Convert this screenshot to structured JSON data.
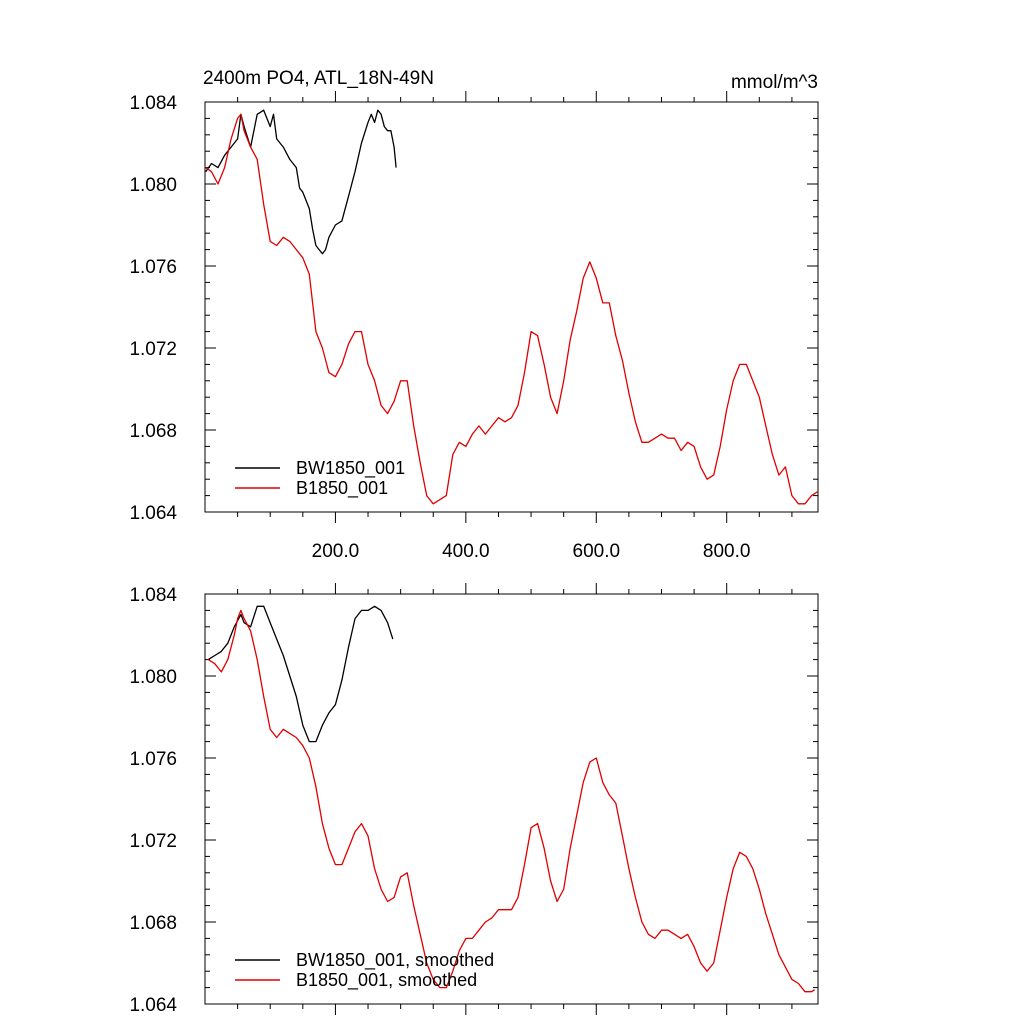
{
  "colors": {
    "black": "#000000",
    "red": "#e00000"
  },
  "chart_data": [
    {
      "type": "line",
      "title": "2400m PO4, ATL_18N-49N",
      "units": "mmol/m^3",
      "xlabel": "",
      "ylabel": "",
      "xlim": [
        0,
        940
      ],
      "ylim": [
        1.064,
        1.084
      ],
      "x_ticks": [
        200,
        400,
        600,
        800
      ],
      "x_tick_labels": [
        "200.0",
        "400.0",
        "600.0",
        "800.0"
      ],
      "y_ticks": [
        1.064,
        1.068,
        1.072,
        1.076,
        1.08,
        1.084
      ],
      "y_tick_labels": [
        "1.064",
        "1.068",
        "1.072",
        "1.076",
        "1.080",
        "1.084"
      ],
      "legend_position": "bottom-left",
      "grid": false,
      "series": [
        {
          "name": "BW1850_001",
          "color": "#000000",
          "x": [
            1,
            10,
            20,
            30,
            40,
            50,
            55,
            60,
            70,
            80,
            90,
            100,
            105,
            110,
            120,
            130,
            140,
            145,
            150,
            160,
            165,
            170,
            175,
            180,
            185,
            190,
            200,
            210,
            220,
            230,
            240,
            250,
            255,
            260,
            265,
            270,
            275,
            280,
            285,
            290,
            293
          ],
          "y": [
            1.0806,
            1.081,
            1.0808,
            1.0814,
            1.0818,
            1.0822,
            1.0834,
            1.0828,
            1.0818,
            1.0834,
            1.0836,
            1.0828,
            1.0834,
            1.0822,
            1.0818,
            1.0812,
            1.0808,
            1.0798,
            1.0796,
            1.0788,
            1.0778,
            1.077,
            1.0768,
            1.0766,
            1.0768,
            1.0774,
            1.078,
            1.0782,
            1.0794,
            1.0806,
            1.082,
            1.083,
            1.0834,
            1.083,
            1.0836,
            1.0834,
            1.0828,
            1.0826,
            1.0826,
            1.0818,
            1.0808
          ]
        },
        {
          "name": "B1850_001",
          "color": "#e00000",
          "x": [
            1,
            10,
            20,
            30,
            40,
            50,
            55,
            60,
            70,
            80,
            90,
            100,
            110,
            120,
            130,
            140,
            150,
            160,
            170,
            180,
            190,
            200,
            210,
            220,
            230,
            240,
            250,
            260,
            270,
            280,
            290,
            300,
            310,
            320,
            330,
            340,
            350,
            360,
            370,
            380,
            390,
            400,
            410,
            420,
            430,
            440,
            450,
            460,
            470,
            480,
            490,
            500,
            510,
            520,
            530,
            540,
            550,
            560,
            570,
            580,
            590,
            600,
            610,
            620,
            630,
            640,
            650,
            660,
            670,
            680,
            690,
            700,
            710,
            720,
            730,
            740,
            750,
            760,
            770,
            780,
            790,
            800,
            810,
            820,
            830,
            840,
            850,
            860,
            870,
            880,
            890,
            900,
            910,
            920,
            930,
            940
          ],
          "y": [
            1.0808,
            1.0806,
            1.08,
            1.0808,
            1.0822,
            1.0832,
            1.0834,
            1.0826,
            1.0818,
            1.0812,
            1.079,
            1.0772,
            1.077,
            1.0774,
            1.0772,
            1.0768,
            1.0764,
            1.0756,
            1.0728,
            1.072,
            1.0708,
            1.0706,
            1.0712,
            1.0722,
            1.0728,
            1.0728,
            1.0712,
            1.0704,
            1.0692,
            1.0688,
            1.0694,
            1.0704,
            1.0704,
            1.0682,
            1.0664,
            1.0648,
            1.0644,
            1.0646,
            1.0648,
            1.0668,
            1.0674,
            1.0672,
            1.0678,
            1.0682,
            1.0678,
            1.0682,
            1.0686,
            1.0684,
            1.0686,
            1.0692,
            1.0708,
            1.0728,
            1.0726,
            1.0712,
            1.0696,
            1.0688,
            1.0704,
            1.0724,
            1.0738,
            1.0754,
            1.0762,
            1.0754,
            1.0742,
            1.0742,
            1.0726,
            1.0714,
            1.0698,
            1.0684,
            1.0674,
            1.0674,
            1.0676,
            1.0678,
            1.0676,
            1.0676,
            1.067,
            1.0674,
            1.0672,
            1.0662,
            1.0656,
            1.0658,
            1.0672,
            1.069,
            1.0704,
            1.0712,
            1.0712,
            1.0704,
            1.0696,
            1.0682,
            1.0668,
            1.0658,
            1.0662,
            1.0648,
            1.0644,
            1.0644,
            1.0648,
            1.065
          ]
        }
      ]
    },
    {
      "type": "line",
      "title": "",
      "units": "",
      "xlabel": "",
      "ylabel": "",
      "xlim": [
        0,
        940
      ],
      "ylim": [
        1.064,
        1.084
      ],
      "x_ticks": [
        200,
        400,
        600,
        800
      ],
      "x_tick_labels": [],
      "y_ticks": [
        1.064,
        1.068,
        1.072,
        1.076,
        1.08,
        1.084
      ],
      "y_tick_labels": [
        "1.064",
        "1.068",
        "1.072",
        "1.076",
        "1.080",
        "1.084"
      ],
      "legend_position": "bottom-left",
      "grid": false,
      "series": [
        {
          "name": "BW1850_001, smoothed",
          "color": "#000000",
          "x": [
            5,
            15,
            25,
            35,
            45,
            55,
            60,
            70,
            80,
            90,
            100,
            110,
            120,
            130,
            140,
            150,
            160,
            170,
            180,
            190,
            200,
            210,
            220,
            230,
            240,
            250,
            260,
            270,
            280,
            288
          ],
          "y": [
            1.0808,
            1.081,
            1.0812,
            1.0816,
            1.0824,
            1.083,
            1.0826,
            1.0824,
            1.0834,
            1.0834,
            1.0826,
            1.0818,
            1.081,
            1.08,
            1.079,
            1.0776,
            1.0768,
            1.0768,
            1.0776,
            1.0782,
            1.0786,
            1.0798,
            1.0814,
            1.0828,
            1.0832,
            1.0832,
            1.0834,
            1.0832,
            1.0826,
            1.0818
          ]
        },
        {
          "name": "B1850_001, smoothed",
          "color": "#e00000",
          "x": [
            5,
            15,
            25,
            35,
            45,
            50,
            55,
            60,
            70,
            80,
            90,
            100,
            110,
            120,
            130,
            140,
            150,
            160,
            170,
            180,
            190,
            200,
            210,
            220,
            230,
            240,
            250,
            260,
            270,
            280,
            290,
            300,
            310,
            320,
            330,
            340,
            350,
            360,
            370,
            380,
            390,
            400,
            410,
            420,
            430,
            440,
            450,
            460,
            470,
            480,
            490,
            500,
            510,
            520,
            530,
            540,
            550,
            560,
            570,
            580,
            590,
            600,
            610,
            620,
            630,
            640,
            650,
            660,
            670,
            680,
            690,
            700,
            710,
            720,
            730,
            740,
            750,
            760,
            770,
            780,
            790,
            800,
            810,
            820,
            830,
            840,
            850,
            860,
            870,
            880,
            890,
            900,
            910,
            920,
            930,
            935
          ],
          "y": [
            1.0808,
            1.0806,
            1.0802,
            1.0808,
            1.082,
            1.0828,
            1.0832,
            1.0828,
            1.0822,
            1.0808,
            1.079,
            1.0774,
            1.077,
            1.0774,
            1.0772,
            1.077,
            1.0766,
            1.076,
            1.0746,
            1.0728,
            1.0716,
            1.0708,
            1.0708,
            1.0716,
            1.0724,
            1.0728,
            1.0722,
            1.0706,
            1.0696,
            1.069,
            1.0692,
            1.0702,
            1.0704,
            1.0688,
            1.0674,
            1.066,
            1.0652,
            1.0648,
            1.0648,
            1.0656,
            1.0666,
            1.0672,
            1.0672,
            1.0676,
            1.068,
            1.0682,
            1.0686,
            1.0686,
            1.0686,
            1.0692,
            1.0708,
            1.0726,
            1.0728,
            1.0716,
            1.07,
            1.069,
            1.0696,
            1.0716,
            1.0732,
            1.0748,
            1.0758,
            1.076,
            1.0748,
            1.0742,
            1.0738,
            1.0722,
            1.0706,
            1.0692,
            1.068,
            1.0674,
            1.0672,
            1.0676,
            1.0676,
            1.0674,
            1.0672,
            1.0674,
            1.0668,
            1.066,
            1.0656,
            1.066,
            1.0676,
            1.0692,
            1.0706,
            1.0714,
            1.0712,
            1.0706,
            1.0696,
            1.0684,
            1.0674,
            1.0664,
            1.0658,
            1.0652,
            1.065,
            1.0646,
            1.0646,
            1.0647
          ]
        }
      ]
    }
  ]
}
